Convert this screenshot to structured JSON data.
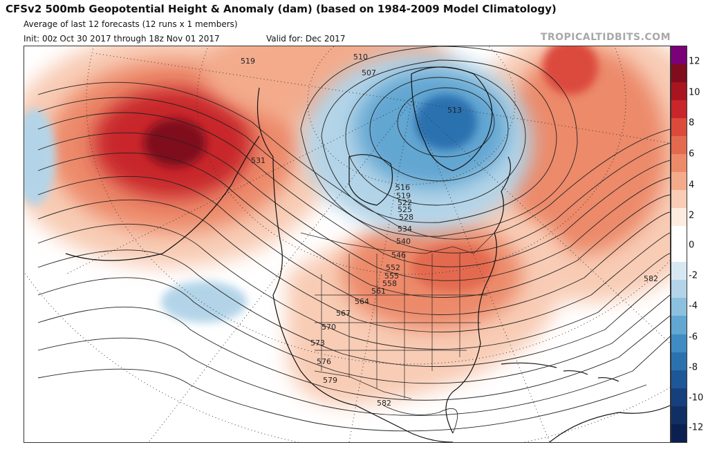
{
  "header": {
    "title": "CFSv2 500mb Geopotential Height & Anomaly (dam) (based on 1984-2009 Model Climatology)",
    "subtitle": "Average of last 12 forecasts (12 runs x 1 members)",
    "init": "Init: 00z Oct 30 2017 through 18z Nov 01 2017",
    "valid": "Valid for: Dec 2017",
    "brand": "TROPICALTIDBITS.COM"
  },
  "map": {
    "region": "North America",
    "contour_labels": [
      "507",
      "510",
      "513",
      "516",
      "519",
      "519",
      "522",
      "525",
      "528",
      "531",
      "534",
      "540",
      "546",
      "552",
      "555",
      "558",
      "561",
      "564",
      "567",
      "570",
      "573",
      "576",
      "579",
      "582",
      "582"
    ],
    "anomaly_features": [
      {
        "name": "gulf-of-alaska-ridge",
        "anomaly_dam": 11
      },
      {
        "name": "greenland-trough",
        "anomaly_dam": -7
      },
      {
        "name": "eastern-us-ridge",
        "anomaly_dam": 5
      },
      {
        "name": "north-atlantic-ridge",
        "anomaly_dam": 6
      },
      {
        "name": "central-pacific-trough",
        "anomaly_dam": -2
      }
    ]
  },
  "colorbar": {
    "ticks": [
      "12",
      "10",
      "8",
      "6",
      "4",
      "2",
      "0",
      "-2",
      "-4",
      "-6",
      "-8",
      "-10",
      "-12"
    ],
    "colors": [
      "#7a0177",
      "#800d1c",
      "#a8151f",
      "#c8262a",
      "#dc4a3c",
      "#e46a4f",
      "#ec8a6a",
      "#f3ab8c",
      "#f8ccb5",
      "#fcebdf",
      "#ffffff",
      "#ffffff",
      "#d7e8f2",
      "#b3d4e8",
      "#8cc0df",
      "#62a6d2",
      "#3f8cc4",
      "#2b71b0",
      "#1d5797",
      "#16407c",
      "#102f64",
      "#0b2050"
    ]
  }
}
